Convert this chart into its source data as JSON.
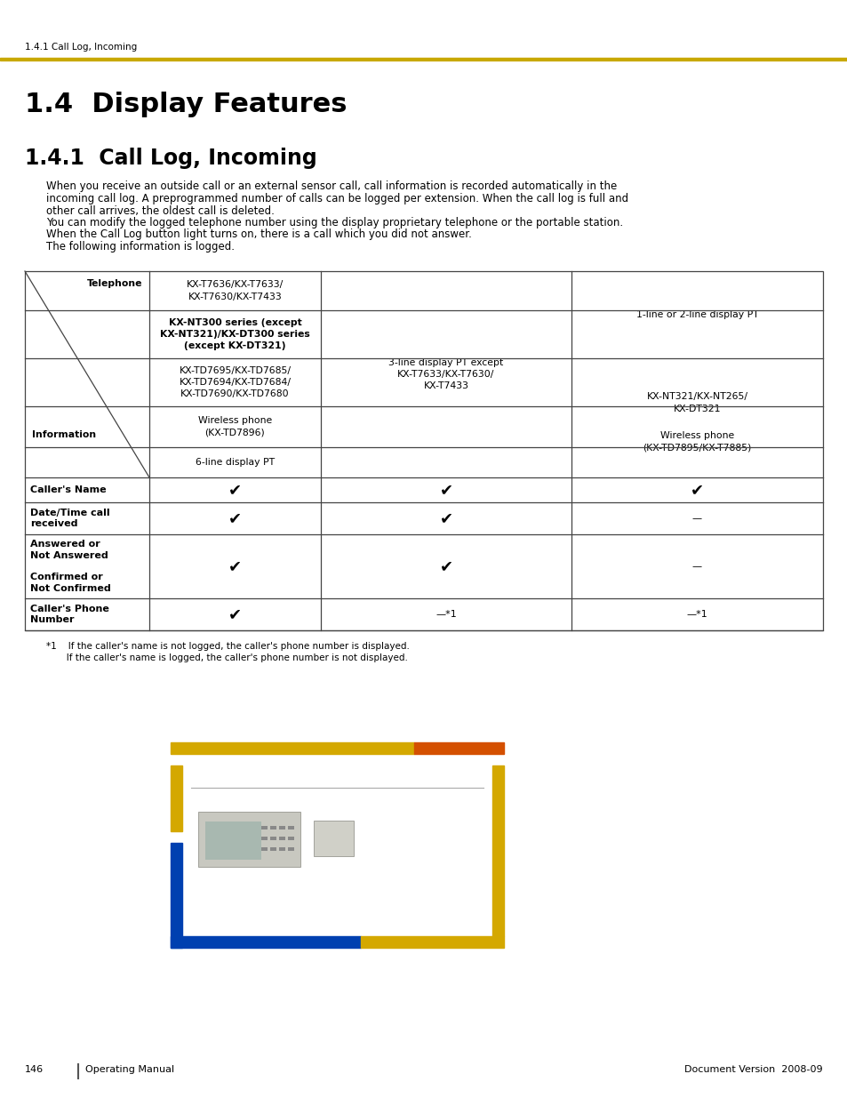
{
  "page_bg": "#ffffff",
  "header_line_color": "#c8a800",
  "header_text": "1.4.1 Call Log, Incoming",
  "header_text_color": "#000000",
  "header_fontsize": 7.5,
  "chapter_title": "1.4  Display Features",
  "chapter_title_fontsize": 22,
  "section_title": "1.4.1  Call Log, Incoming",
  "section_title_fontsize": 17,
  "body_text_lines": [
    "When you receive an outside call or an external sensor call, call information is recorded automatically in the",
    "incoming call log. A preprogrammed number of calls can be logged per extension. When the call log is full and",
    "other call arrives, the oldest call is deleted.",
    "You can modify the logged telephone number using the display proprietary telephone or the portable station.",
    "When the Call Log button light turns on, there is a call which you did not answer.",
    "The following information is logged."
  ],
  "body_fontsize": 8.5,
  "footer_left_num": "146",
  "footer_left_label": "Operating Manual",
  "footer_right": "Document Version  2008-09",
  "footer_fontsize": 8,
  "gold": "#d4a800",
  "orange": "#d45000",
  "blue": "#0040b0"
}
